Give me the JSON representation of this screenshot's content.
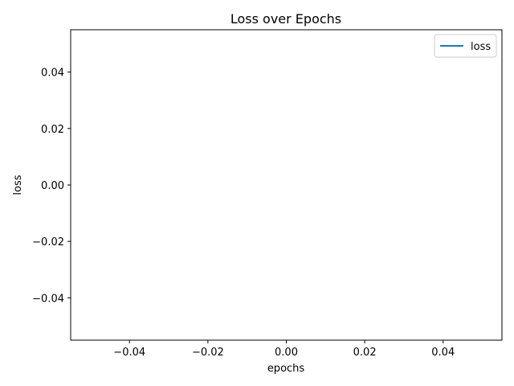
{
  "chart_data": {
    "type": "line",
    "title": "Loss over Epochs",
    "xlabel": "epochs",
    "ylabel": "loss",
    "xlim": [
      -0.055,
      0.055
    ],
    "ylim": [
      -0.055,
      0.055
    ],
    "x_ticks": [
      -0.04,
      -0.02,
      0.0,
      0.02,
      0.04
    ],
    "x_tick_labels": [
      "−0.04",
      "−0.02",
      "0.00",
      "0.02",
      "0.04"
    ],
    "y_ticks": [
      -0.04,
      -0.02,
      0.0,
      0.02,
      0.04
    ],
    "y_tick_labels": [
      "−0.04",
      "−0.02",
      "0.00",
      "0.02",
      "0.04"
    ],
    "grid": false,
    "legend_position": "top-right",
    "series": [
      {
        "name": "loss",
        "color": "#1f77b4",
        "x": [],
        "y": []
      }
    ]
  }
}
